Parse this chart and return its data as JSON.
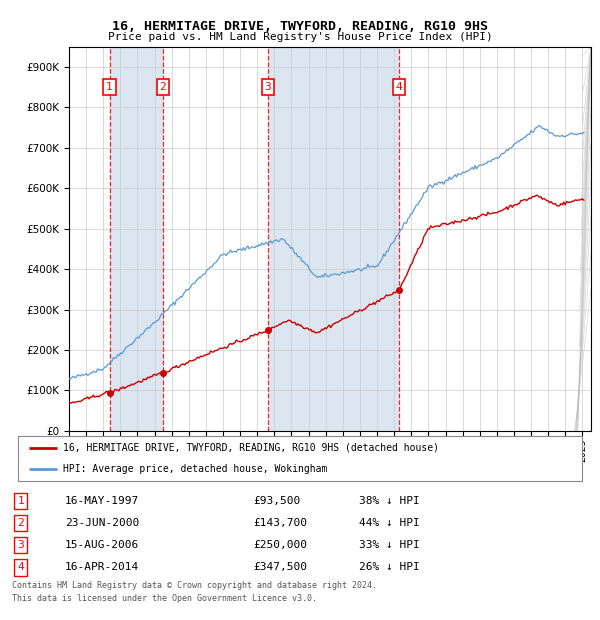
{
  "title": "16, HERMITAGE DRIVE, TWYFORD, READING, RG10 9HS",
  "subtitle": "Price paid vs. HM Land Registry's House Price Index (HPI)",
  "sale_dates_num": [
    1997.37,
    2000.48,
    2006.62,
    2014.29
  ],
  "sale_prices": [
    93500,
    143700,
    250000,
    347500
  ],
  "sale_labels": [
    "1",
    "2",
    "3",
    "4"
  ],
  "sale_table": [
    [
      "1",
      "16-MAY-1997",
      "£93,500",
      "38% ↓ HPI"
    ],
    [
      "2",
      "23-JUN-2000",
      "£143,700",
      "44% ↓ HPI"
    ],
    [
      "3",
      "15-AUG-2006",
      "£250,000",
      "33% ↓ HPI"
    ],
    [
      "4",
      "16-APR-2014",
      "£347,500",
      "26% ↓ HPI"
    ]
  ],
  "legend_line1": "16, HERMITAGE DRIVE, TWYFORD, READING, RG10 9HS (detached house)",
  "legend_line2": "HPI: Average price, detached house, Wokingham",
  "footer1": "Contains HM Land Registry data © Crown copyright and database right 2024.",
  "footer2": "This data is licensed under the Open Government Licence v3.0.",
  "hpi_color": "#5b9bd5",
  "price_color": "#cc0000",
  "bg_color": "#dce6f1",
  "ylim": [
    0,
    950000
  ],
  "xlim_start": 1995.0,
  "xlim_end": 2025.5
}
